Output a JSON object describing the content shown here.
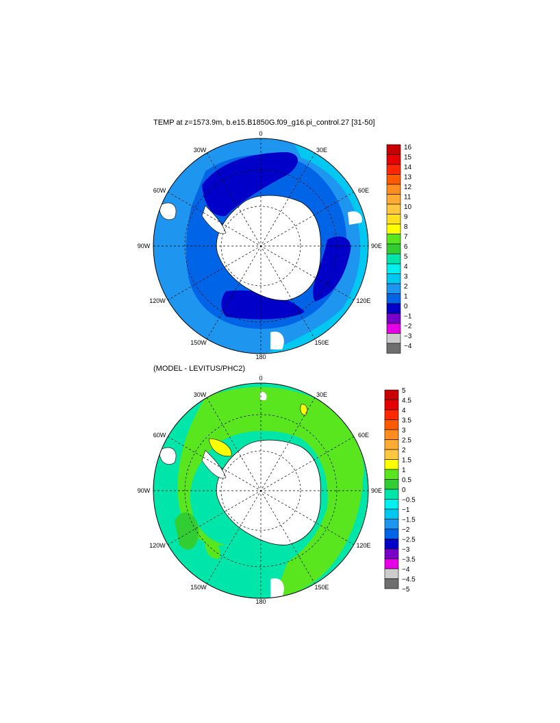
{
  "panels": [
    {
      "title": "TEMP at z=1573.9m, b.e15.B1850G.f09_g16.pi_control.27 [31-50]",
      "lon_labels": [
        "0",
        "30E",
        "60E",
        "90E",
        "120E",
        "150E",
        "180",
        "150W",
        "120W",
        "90W",
        "60W",
        "30W"
      ],
      "colorbar": {
        "labels": [
          "16",
          "15",
          "14",
          "13",
          "12",
          "11",
          "10",
          "9",
          "8",
          "7",
          "6",
          "5",
          "4",
          "3",
          "2",
          "1",
          "0",
          "−1",
          "−2",
          "−3",
          "−4"
        ],
        "colors": [
          "#c80000",
          "#e60000",
          "#ff2800",
          "#ff5a00",
          "#ff8c1e",
          "#ffaa32",
          "#ffc840",
          "#ffe01e",
          "#ffff00",
          "#5ae61e",
          "#32cd32",
          "#00e6aa",
          "#00f0f0",
          "#00c8f0",
          "#1e96f0",
          "#0064e6",
          "#0000c8",
          "#7800c8",
          "#e600e6",
          "#cccccc",
          "#6e6e6e"
        ]
      },
      "fields": {
        "ocean": "#1e96f0",
        "outer": "#00c8f0",
        "inner": "#0064e6",
        "deep": "#0000c8"
      }
    },
    {
      "title": "(MODEL - LEVITUS/PHC2)",
      "lon_labels": [
        "0",
        "30E",
        "60E",
        "90E",
        "120E",
        "150E",
        "180",
        "150W",
        "120W",
        "90W",
        "60W",
        "30W"
      ],
      "colorbar": {
        "labels": [
          "5",
          "4.5",
          "4",
          "3.5",
          "3",
          "2.5",
          "2",
          "1.5",
          "1",
          "0.5",
          "0",
          "−0.5",
          "−1",
          "−1.5",
          "−2",
          "−2.5",
          "−3",
          "−3.5",
          "−4",
          "−4.5",
          "−5"
        ],
        "colors": [
          "#c80000",
          "#e60000",
          "#ff2800",
          "#ff5a00",
          "#ff8c1e",
          "#ffaa32",
          "#ffc840",
          "#ffff00",
          "#5ae61e",
          "#32cd32",
          "#00e6aa",
          "#00f0f0",
          "#00c8f0",
          "#1e96f0",
          "#0064e6",
          "#0000c8",
          "#7800c8",
          "#e600e6",
          "#cccccc",
          "#6e6e6e"
        ]
      },
      "fields": {
        "ocean": "#00e6aa",
        "green": "#5ae61e",
        "mid": "#32cd32",
        "yellow": "#ffff00"
      }
    }
  ]
}
